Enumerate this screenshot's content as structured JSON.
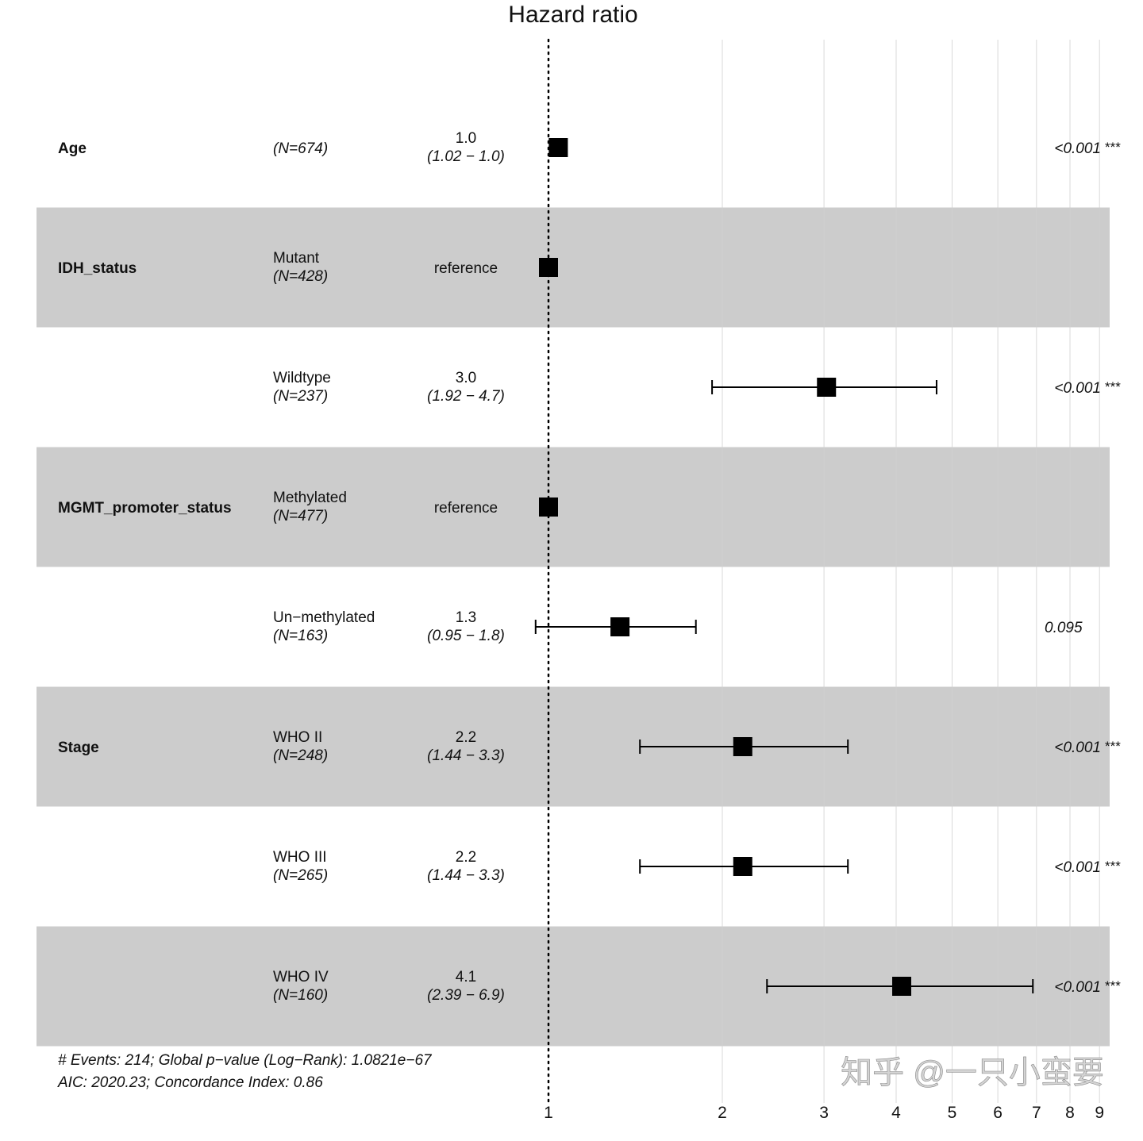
{
  "chart_data": {
    "type": "forest",
    "title": "Hazard ratio",
    "x_scale": "log",
    "xlim": [
      0.95,
      9.3
    ],
    "x_ticks": [
      1,
      2,
      3,
      4,
      5,
      6,
      7,
      8,
      9
    ],
    "reference_line": 1,
    "grid": true,
    "rows": [
      {
        "variable": "Age",
        "level": "",
        "n": "(N=674)",
        "hr_label": "1.0",
        "ci_label": "(1.02 − 1.0)",
        "hr": 1.04,
        "low": null,
        "high": null,
        "p": "<0.001",
        "stars": "***",
        "band": false
      },
      {
        "variable": "IDH_status",
        "level": "Mutant",
        "n": "(N=428)",
        "hr_label": "reference",
        "ci_label": "",
        "hr": 1.0,
        "low": null,
        "high": null,
        "p": "",
        "stars": "",
        "band": true
      },
      {
        "variable": "",
        "level": "Wildtype",
        "n": "(N=237)",
        "hr_label": "3.0",
        "ci_label": "(1.92 − 4.7)",
        "hr": 3.03,
        "low": 1.92,
        "high": 4.7,
        "p": "<0.001",
        "stars": "***",
        "band": false
      },
      {
        "variable": "MGMT_promoter_status",
        "level": "Methylated",
        "n": "(N=477)",
        "hr_label": "reference",
        "ci_label": "",
        "hr": 1.0,
        "low": null,
        "high": null,
        "p": "",
        "stars": "",
        "band": true
      },
      {
        "variable": "",
        "level": "Un−methylated",
        "n": "(N=163)",
        "hr_label": "1.3",
        "ci_label": "(0.95 − 1.8)",
        "hr": 1.33,
        "low": 0.95,
        "high": 1.8,
        "p": "0.095",
        "stars": "",
        "band": false
      },
      {
        "variable": "Stage",
        "level": "WHO II",
        "n": "(N=248)",
        "hr_label": "2.2",
        "ci_label": "(1.44 − 3.3)",
        "hr": 2.17,
        "low": 1.44,
        "high": 3.3,
        "p": "<0.001",
        "stars": "***",
        "band": true
      },
      {
        "variable": "",
        "level": "WHO III",
        "n": "(N=265)",
        "hr_label": "2.2",
        "ci_label": "(1.44 − 3.3)",
        "hr": 2.17,
        "low": 1.44,
        "high": 3.3,
        "p": "<0.001",
        "stars": "***",
        "band": false
      },
      {
        "variable": "",
        "level": "WHO IV",
        "n": "(N=160)",
        "hr_label": "4.1",
        "ci_label": "(2.39 − 6.9)",
        "hr": 4.09,
        "low": 2.39,
        "high": 6.9,
        "p": "<0.001",
        "stars": "***",
        "band": true
      }
    ],
    "footnote": [
      "# Events: 214; Global p−value (Log−Rank): 1.0821e−67",
      "AIC: 2020.23; Concordance Index: 0.86"
    ],
    "watermark": "知乎 @一只小蛮要",
    "colors": {
      "band": "#cccccc",
      "grid": "#d0d0d0",
      "mark": "#000000"
    }
  }
}
